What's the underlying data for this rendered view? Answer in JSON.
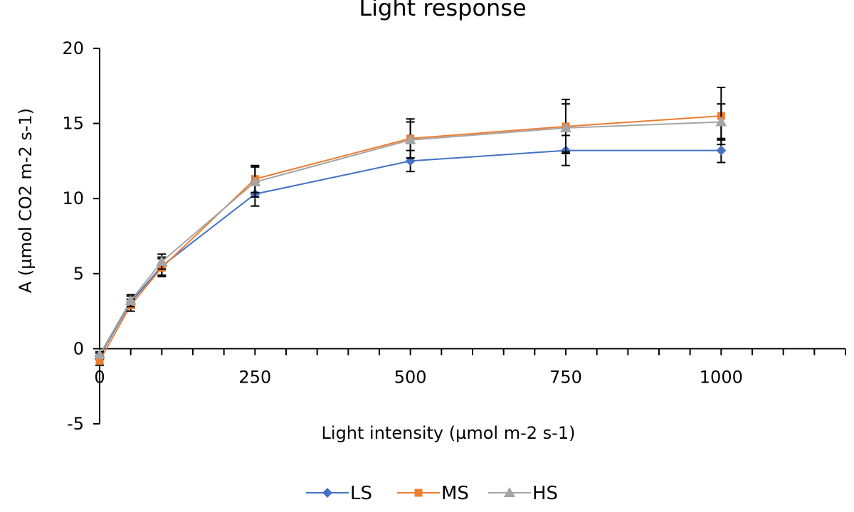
{
  "chart_data": {
    "type": "line",
    "title": "Light response",
    "xlabel": "Light intensity (µmol m-2 s-1)",
    "ylabel": "A (µmol CO2 m-2 s-1)",
    "x_ticks": [
      "0",
      "250",
      "500",
      "750",
      "1000"
    ],
    "y_ticks": [
      "-5",
      "0",
      "5",
      "10",
      "15",
      "20"
    ],
    "xlim": [
      0,
      1200
    ],
    "ylim": [
      -5,
      20
    ],
    "x": [
      0,
      50,
      100,
      250,
      500,
      750,
      1000
    ],
    "grid": false,
    "legend_position": "bottom",
    "series": [
      {
        "name": "LS",
        "color": "#4472C4",
        "marker": "diamond",
        "values": [
          -0.5,
          3.1,
          5.5,
          10.3,
          12.5,
          13.2,
          13.2
        ],
        "errors": [
          0.2,
          0.4,
          0.6,
          0.8,
          0.7,
          1.0,
          0.8
        ]
      },
      {
        "name": "MS",
        "color": "#ED7D31",
        "marker": "square",
        "values": [
          -0.8,
          2.9,
          5.4,
          11.3,
          14.0,
          14.8,
          15.5
        ],
        "errors": [
          0.3,
          0.4,
          0.6,
          0.9,
          1.3,
          1.8,
          1.9
        ]
      },
      {
        "name": "HS",
        "color": "#A5A5A5",
        "marker": "triangle",
        "values": [
          -0.4,
          3.2,
          5.8,
          11.1,
          13.9,
          14.7,
          15.1
        ],
        "errors": [
          0.2,
          0.4,
          0.5,
          1.0,
          1.2,
          1.6,
          1.2
        ]
      }
    ]
  }
}
